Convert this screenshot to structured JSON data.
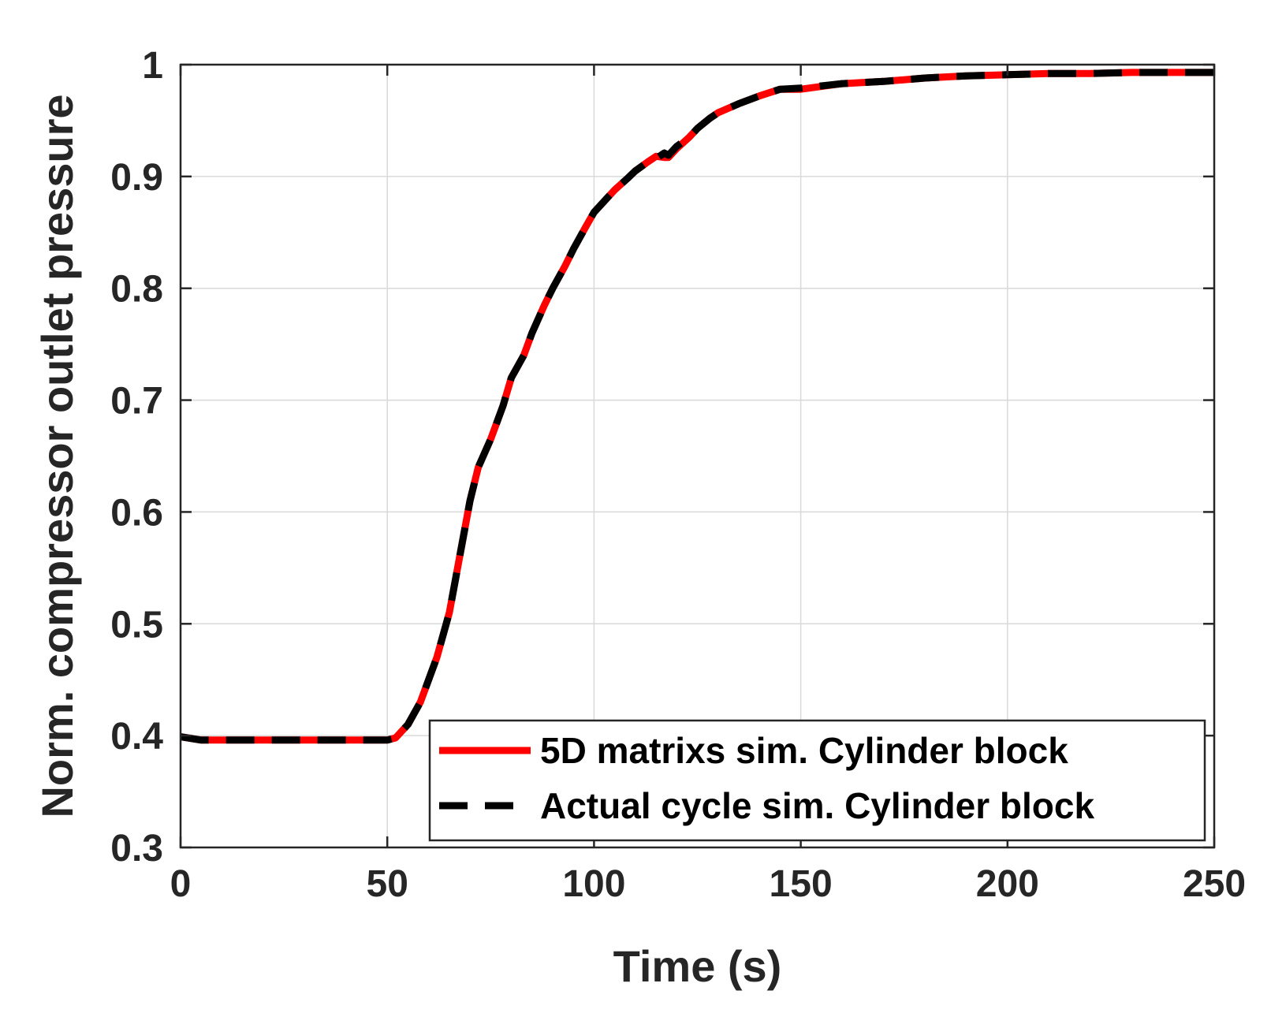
{
  "chart_data": {
    "type": "line",
    "title": "",
    "xlabel": "Time (s)",
    "ylabel": "Norm. compressor outlet pressure",
    "xlim": [
      0,
      250
    ],
    "ylim": [
      0.3,
      1.0
    ],
    "grid": true,
    "legend_position": "bottom-right",
    "x_ticks": [
      0,
      50,
      100,
      150,
      200,
      250
    ],
    "x_tick_labels": [
      "0",
      "50",
      "100",
      "150",
      "200",
      "250"
    ],
    "y_ticks": [
      0.3,
      0.4,
      0.5,
      0.6,
      0.7,
      0.8,
      0.9,
      1.0
    ],
    "y_tick_labels": [
      "0.3",
      "0.4",
      "0.5",
      "0.6",
      "0.7",
      "0.8",
      "0.9",
      "1"
    ],
    "x": [
      0,
      5,
      10,
      20,
      30,
      40,
      48,
      50,
      52,
      55,
      58,
      62,
      65,
      68,
      70,
      72,
      75,
      78,
      80,
      83,
      85,
      88,
      90,
      93,
      95,
      98,
      100,
      103,
      105,
      108,
      110,
      113,
      115,
      117,
      118,
      120,
      123,
      125,
      128,
      130,
      135,
      140,
      145,
      150,
      160,
      170,
      180,
      190,
      200,
      210,
      220,
      230,
      240,
      250
    ],
    "series": [
      {
        "name": "5D matrixs sim. Cylinder block",
        "color": "#ff0000",
        "style": "solid",
        "values": [
          0.399,
          0.396,
          0.396,
          0.396,
          0.396,
          0.396,
          0.396,
          0.396,
          0.398,
          0.41,
          0.43,
          0.47,
          0.51,
          0.57,
          0.61,
          0.64,
          0.665,
          0.695,
          0.72,
          0.74,
          0.76,
          0.785,
          0.8,
          0.82,
          0.835,
          0.855,
          0.868,
          0.88,
          0.888,
          0.898,
          0.905,
          0.913,
          0.918,
          0.917,
          0.917,
          0.925,
          0.935,
          0.943,
          0.952,
          0.957,
          0.965,
          0.972,
          0.978,
          0.978,
          0.983,
          0.985,
          0.988,
          0.99,
          0.991,
          0.992,
          0.992,
          0.993,
          0.993,
          0.993
        ]
      },
      {
        "name": "Actual cycle sim. Cylinder block",
        "color": "#000000",
        "style": "dashed",
        "values": [
          0.399,
          0.396,
          0.396,
          0.396,
          0.396,
          0.396,
          0.396,
          0.396,
          0.398,
          0.41,
          0.43,
          0.47,
          0.51,
          0.57,
          0.61,
          0.64,
          0.665,
          0.695,
          0.72,
          0.74,
          0.76,
          0.785,
          0.8,
          0.82,
          0.835,
          0.855,
          0.868,
          0.88,
          0.888,
          0.898,
          0.905,
          0.913,
          0.916,
          0.921,
          0.919,
          0.927,
          0.935,
          0.943,
          0.952,
          0.957,
          0.965,
          0.972,
          0.978,
          0.979,
          0.983,
          0.985,
          0.988,
          0.99,
          0.991,
          0.992,
          0.992,
          0.993,
          0.993,
          0.993
        ]
      }
    ]
  }
}
